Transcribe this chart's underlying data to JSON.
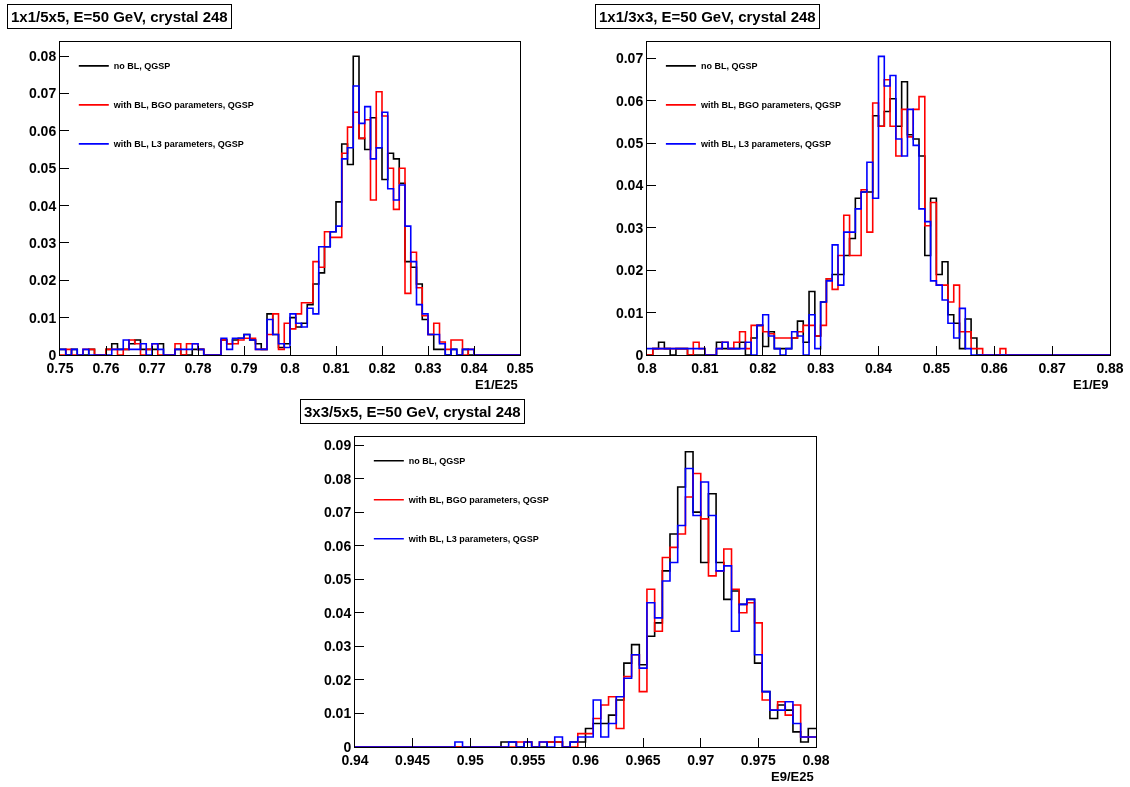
{
  "chart_data": [
    {
      "type": "histogram",
      "title": "1x1/5x5, E=50 GeV, crystal 248",
      "xlabel": "E1/E25",
      "legend": "top left",
      "grid": false,
      "bins": [
        0.75,
        0.75125,
        0.7525,
        0.75375,
        0.755,
        0.75625,
        0.7575,
        0.75875,
        0.76,
        0.76125,
        0.7625,
        0.76375,
        0.765,
        0.76625,
        0.7675,
        0.76875,
        0.77,
        0.77125,
        0.7725,
        0.77375,
        0.775,
        0.77625,
        0.7775,
        0.77875,
        0.78,
        0.78125,
        0.7825,
        0.78375,
        0.785,
        0.78625,
        0.7875,
        0.78875,
        0.79,
        0.79125,
        0.7925,
        0.79375,
        0.795,
        0.79625,
        0.7975,
        0.79875,
        0.8,
        0.80125,
        0.8025,
        0.80375,
        0.805,
        0.80625,
        0.8075,
        0.80875,
        0.81,
        0.81125,
        0.8125,
        0.81375,
        0.815,
        0.81625,
        0.8175,
        0.81875,
        0.82,
        0.82125,
        0.8225,
        0.82375,
        0.825,
        0.82625,
        0.8275,
        0.82875,
        0.83,
        0.83125,
        0.8325,
        0.83375,
        0.835,
        0.83625,
        0.8375,
        0.83875,
        0.84,
        0.84125,
        0.8425,
        0.84375,
        0.845,
        0.84625,
        0.8475,
        0.84875,
        0.85
      ],
      "series": [
        {
          "name": "no BL, QGSP",
          "color": "#000000",
          "values": [
            0.0015,
            0,
            0.0015,
            0,
            0,
            0.0015,
            0,
            0,
            0.0015,
            0.003,
            0.0015,
            0.0015,
            0.003,
            0.004,
            0.0015,
            0.0015,
            0.0015,
            0.003,
            0,
            0,
            0.0015,
            0,
            0,
            0.0015,
            0.0015,
            0,
            0,
            0,
            0.004,
            0.003,
            0.004,
            0.0045,
            0.0055,
            0.004,
            0.003,
            0.0015,
            0.011,
            0.0055,
            0.002,
            0.003,
            0.01,
            0.0075,
            0.0085,
            0.0135,
            0.019,
            0.022,
            0.029,
            0.033,
            0.041,
            0.0565,
            0.051,
            0.08,
            0.058,
            0.055,
            0.0635,
            0.0555,
            0.047,
            0.054,
            0.0525,
            0.046,
            0.025,
            0.0235,
            0.019,
            0.0095,
            0.0055,
            0.0015,
            0.0015,
            0,
            0.0015,
            0,
            0.0015,
            0,
            0,
            0,
            0,
            0,
            0,
            0,
            0,
            0
          ]
        },
        {
          "name": "with BL, BGO parameters, QGSP",
          "color": "#ff0000",
          "values": [
            0,
            0.0015,
            0,
            0,
            0.0015,
            0.0015,
            0,
            0,
            0.0015,
            0.0015,
            0,
            0.0015,
            0.004,
            0.003,
            0,
            0.0015,
            0.003,
            0,
            0,
            0,
            0.003,
            0,
            0.003,
            0.003,
            0.0015,
            0,
            0,
            0,
            0.004,
            0.003,
            0.003,
            0.004,
            0.0045,
            0.0045,
            0.0015,
            0.0015,
            0.0055,
            0.011,
            0.0015,
            0.0085,
            0.007,
            0.011,
            0.014,
            0.014,
            0.025,
            0.0235,
            0.033,
            0.0315,
            0.0315,
            0.054,
            0.061,
            0.065,
            0.058,
            0.063,
            0.0415,
            0.0705,
            0.064,
            0.05,
            0.039,
            0.05,
            0.0165,
            0.0275,
            0.018,
            0.0105,
            0.0055,
            0.0085,
            0.0035,
            0.0015,
            0.004,
            0.004,
            0,
            0.0015,
            0,
            0,
            0,
            0,
            0,
            0,
            0,
            0
          ]
        },
        {
          "name": "with BL, L3 parameters, QGSP",
          "color": "#0000ff",
          "values": [
            0.0015,
            0,
            0.0015,
            0,
            0.0015,
            0,
            0,
            0,
            0,
            0.0015,
            0.0015,
            0.004,
            0.0015,
            0.0015,
            0.003,
            0,
            0.003,
            0.0015,
            0,
            0,
            0.0015,
            0.0015,
            0.0015,
            0.003,
            0.0015,
            0,
            0,
            0,
            0.0045,
            0.0015,
            0.0045,
            0.0045,
            0.0055,
            0.004,
            0.0015,
            0.0015,
            0.0095,
            0.0055,
            0.003,
            0.002,
            0.011,
            0.0085,
            0.0075,
            0.0125,
            0.011,
            0.029,
            0.029,
            0.033,
            0.0345,
            0.0525,
            0.0555,
            0.072,
            0.062,
            0.0665,
            0.0525,
            0.0555,
            0.065,
            0.0445,
            0.0415,
            0.0455,
            0.0345,
            0.025,
            0.0135,
            0.011,
            0.0055,
            0.0055,
            0.003,
            0,
            0.0015,
            0,
            0.0015,
            0.0015,
            0,
            0,
            0,
            0,
            0,
            0,
            0,
            0
          ]
        }
      ],
      "xlim": [
        0.75,
        0.85
      ],
      "xticks": [
        0.75,
        0.76,
        0.77,
        0.78,
        0.79,
        0.8,
        0.81,
        0.82,
        0.83,
        0.84,
        0.85
      ],
      "ylim": [
        0,
        0.0838
      ],
      "yticks": [
        0,
        0.01,
        0.02,
        0.03,
        0.04,
        0.05,
        0.06,
        0.07,
        0.08
      ]
    },
    {
      "type": "histogram",
      "title": "1x1/3x3, E=50 GeV, crystal 248",
      "xlabel": "E1/E9",
      "legend": "top left",
      "grid": false,
      "bins": [
        0.8,
        0.801,
        0.802,
        0.803,
        0.804,
        0.805,
        0.806,
        0.807,
        0.808,
        0.809,
        0.81,
        0.811,
        0.812,
        0.813,
        0.814,
        0.815,
        0.816,
        0.817,
        0.818,
        0.819,
        0.82,
        0.821,
        0.822,
        0.823,
        0.824,
        0.825,
        0.826,
        0.827,
        0.828,
        0.829,
        0.83,
        0.831,
        0.832,
        0.833,
        0.834,
        0.835,
        0.836,
        0.837,
        0.838,
        0.839,
        0.84,
        0.841,
        0.842,
        0.843,
        0.844,
        0.845,
        0.846,
        0.847,
        0.848,
        0.849,
        0.85,
        0.851,
        0.852,
        0.853,
        0.854,
        0.855,
        0.856,
        0.857,
        0.858,
        0.859,
        0.86,
        0.861,
        0.862,
        0.863,
        0.864,
        0.865,
        0.866,
        0.867,
        0.868,
        0.869,
        0.87,
        0.871,
        0.872,
        0.873,
        0.874,
        0.875,
        0.876,
        0.877,
        0.878,
        0.879,
        0.88
      ],
      "series": [
        {
          "name": "no BL, QGSP",
          "color": "#000000",
          "values": [
            0,
            0.0015,
            0.003,
            0.0015,
            0,
            0.0015,
            0.0015,
            0,
            0,
            0,
            0,
            0,
            0.003,
            0.0015,
            0.0015,
            0.0015,
            0.003,
            0,
            0.004,
            0.007,
            0.002,
            0.0055,
            0.0015,
            0.0015,
            0.0015,
            0.004,
            0.008,
            0.003,
            0.015,
            0.0045,
            0.0125,
            0.018,
            0.019,
            0.019,
            0.0235,
            0.0275,
            0.037,
            0.0385,
            0.0385,
            0.0565,
            0.054,
            0.0575,
            0.0605,
            0.054,
            0.0645,
            0.052,
            0.051,
            0.047,
            0.0235,
            0.037,
            0.019,
            0.022,
            0.0095,
            0.0075,
            0.0015,
            0.0085,
            0.004,
            0,
            0,
            0,
            0,
            0,
            0,
            0,
            0,
            0,
            0,
            0,
            0,
            0,
            0,
            0,
            0,
            0,
            0,
            0,
            0,
            0,
            0,
            0
          ]
        },
        {
          "name": "with BL, BGO parameters, QGSP",
          "color": "#ff0000",
          "values": [
            0,
            0.0015,
            0.0015,
            0.0015,
            0.0015,
            0.0015,
            0.0015,
            0,
            0.003,
            0.0015,
            0,
            0,
            0.0015,
            0.003,
            0.0015,
            0.003,
            0.0055,
            0.0015,
            0.007,
            0.007,
            0.0055,
            0.005,
            0.004,
            0.004,
            0.004,
            0.004,
            0.0055,
            0.007,
            0.007,
            0.0045,
            0.007,
            0.018,
            0.0155,
            0.0235,
            0.033,
            0.0235,
            0.0235,
            0.039,
            0.029,
            0.0595,
            0.054,
            0.065,
            0.054,
            0.047,
            0.058,
            0.0515,
            0.058,
            0.061,
            0.0305,
            0.036,
            0.0165,
            0.0165,
            0.0125,
            0.0165,
            0.0055,
            0.0055,
            0.0015,
            0.0015,
            0,
            0,
            0,
            0.0015,
            0,
            0,
            0,
            0,
            0,
            0,
            0,
            0,
            0,
            0,
            0,
            0,
            0,
            0,
            0,
            0,
            0,
            0
          ]
        },
        {
          "name": "with BL, L3 parameters, QGSP",
          "color": "#0000ff",
          "values": [
            0.0015,
            0.0015,
            0.0015,
            0.0015,
            0.0015,
            0.0015,
            0.0015,
            0.0015,
            0.0015,
            0.0015,
            0,
            0,
            0.0015,
            0.003,
            0.0015,
            0.0015,
            0.0015,
            0.003,
            0,
            0.007,
            0.0095,
            0.0045,
            0.0015,
            0,
            0.0015,
            0.0055,
            0.0045,
            0,
            0.0095,
            0.0015,
            0.0125,
            0.0175,
            0.026,
            0.0165,
            0.029,
            0.029,
            0.0345,
            0.0385,
            0.0455,
            0.037,
            0.0705,
            0.0635,
            0.066,
            0.051,
            0.047,
            0.058,
            0.0495,
            0.0345,
            0.0315,
            0.0175,
            0.0165,
            0.013,
            0.0075,
            0.004,
            0.011,
            0.0015,
            0,
            0,
            0,
            0,
            0,
            0,
            0,
            0,
            0,
            0,
            0,
            0,
            0,
            0,
            0,
            0,
            0,
            0,
            0,
            0,
            0,
            0,
            0,
            0
          ]
        }
      ],
      "xlim": [
        0.8,
        0.88
      ],
      "xticks": [
        0.8,
        0.81,
        0.82,
        0.83,
        0.84,
        0.85,
        0.86,
        0.87,
        0.88
      ],
      "ylim": [
        0,
        0.0739
      ],
      "yticks": [
        0,
        0.01,
        0.02,
        0.03,
        0.04,
        0.05,
        0.06,
        0.07
      ]
    },
    {
      "type": "histogram",
      "title": "3x3/5x5, E=50 GeV, crystal 248",
      "xlabel": "E9/E25",
      "legend": "top left",
      "grid": false,
      "bins": [
        0.94,
        0.94067,
        0.94133,
        0.942,
        0.94267,
        0.94333,
        0.944,
        0.94467,
        0.94533,
        0.946,
        0.94667,
        0.94733,
        0.948,
        0.94867,
        0.94933,
        0.95,
        0.95067,
        0.95133,
        0.952,
        0.95267,
        0.95333,
        0.954,
        0.95467,
        0.95533,
        0.956,
        0.95667,
        0.95733,
        0.958,
        0.95867,
        0.95933,
        0.96,
        0.96067,
        0.96133,
        0.962,
        0.96267,
        0.96333,
        0.964,
        0.96467,
        0.96533,
        0.966,
        0.96667,
        0.96733,
        0.968,
        0.96867,
        0.96933,
        0.97,
        0.97067,
        0.97133,
        0.972,
        0.97267,
        0.97333,
        0.974,
        0.97467,
        0.97533,
        0.976,
        0.97667,
        0.97733,
        0.978,
        0.97867,
        0.97933,
        0.98
      ],
      "series": [
        {
          "name": "no BL, QGSP",
          "color": "#000000",
          "values": [
            0,
            0,
            0,
            0,
            0,
            0,
            0,
            0,
            0,
            0,
            0,
            0,
            0,
            0,
            0,
            0,
            0,
            0,
            0,
            0.0015,
            0.0015,
            0,
            0.0015,
            0,
            0,
            0.0015,
            0.0015,
            0,
            0.0015,
            0.0015,
            0.0055,
            0.007,
            0.007,
            0.0095,
            0.014,
            0.025,
            0.0305,
            0.0245,
            0.033,
            0.037,
            0.0525,
            0.0635,
            0.0775,
            0.088,
            0.07,
            0.055,
            0.0755,
            0.055,
            0.044,
            0.0465,
            0.0425,
            0.044,
            0.025,
            0.0165,
            0.0085,
            0.0125,
            0.011,
            0.0045,
            0.0015,
            0.0055
          ]
        },
        {
          "name": "with BL, BGO parameters, QGSP",
          "color": "#ff0000",
          "values": [
            0,
            0,
            0,
            0,
            0,
            0,
            0,
            0,
            0,
            0,
            0,
            0,
            0,
            0,
            0,
            0,
            0,
            0,
            0,
            0,
            0,
            0.0015,
            0.0015,
            0,
            0.0015,
            0.0015,
            0.0015,
            0,
            0,
            0.004,
            0.004,
            0.0085,
            0.0125,
            0.015,
            0.0055,
            0.021,
            0.0275,
            0.0165,
            0.047,
            0.0345,
            0.0565,
            0.0595,
            0.0635,
            0.0745,
            0.0815,
            0.068,
            0.051,
            0.0525,
            0.059,
            0.047,
            0.04,
            0.043,
            0.037,
            0.014,
            0.011,
            0.0135,
            0.0095,
            0.0125,
            0.003,
            0.003
          ]
        },
        {
          "name": "with BL, L3 parameters, QGSP",
          "color": "#0000ff",
          "values": [
            0,
            0,
            0,
            0,
            0,
            0,
            0,
            0,
            0,
            0,
            0,
            0,
            0,
            0.0015,
            0,
            0,
            0,
            0,
            0,
            0,
            0.0015,
            0,
            0.0015,
            0,
            0.0015,
            0,
            0.003,
            0,
            0.0015,
            0.003,
            0.003,
            0.014,
            0.003,
            0.007,
            0.015,
            0.0205,
            0.0275,
            0.0235,
            0.043,
            0.0385,
            0.0495,
            0.055,
            0.066,
            0.083,
            0.069,
            0.079,
            0.069,
            0.0525,
            0.054,
            0.0345,
            0.0425,
            0.044,
            0.0275,
            0.0165,
            0.011,
            0.011,
            0.0135,
            0.007,
            0.003,
            0.003
          ]
        }
      ],
      "xlim": [
        0.94,
        0.98
      ],
      "xticks": [
        0.94,
        0.945,
        0.95,
        0.955,
        0.96,
        0.965,
        0.97,
        0.975,
        0.98
      ],
      "ylim": [
        0,
        0.0924
      ],
      "yticks": [
        0,
        0.01,
        0.02,
        0.03,
        0.04,
        0.05,
        0.06,
        0.07,
        0.08,
        0.09
      ]
    }
  ]
}
